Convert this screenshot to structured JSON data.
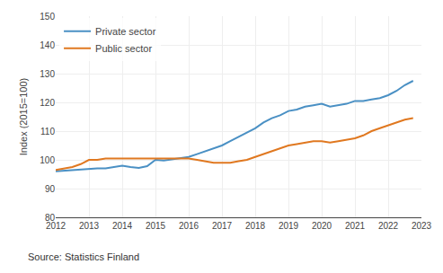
{
  "chart_data": {
    "type": "line",
    "ylabel": "Index (2015=100)",
    "source": "Source: Statistics Finland",
    "x": [
      2012.0,
      2012.25,
      2012.5,
      2012.75,
      2013.0,
      2013.25,
      2013.5,
      2013.75,
      2014.0,
      2014.25,
      2014.5,
      2014.75,
      2015.0,
      2015.25,
      2015.5,
      2015.75,
      2016.0,
      2016.25,
      2016.5,
      2016.75,
      2017.0,
      2017.25,
      2017.5,
      2017.75,
      2018.0,
      2018.25,
      2018.5,
      2018.75,
      2019.0,
      2019.25,
      2019.5,
      2019.75,
      2020.0,
      2020.25,
      2020.5,
      2020.75,
      2021.0,
      2021.25,
      2021.5,
      2021.75,
      2022.0,
      2022.25,
      2022.5,
      2022.75
    ],
    "series": [
      {
        "name": "Private sector",
        "color": "#4a90c4",
        "values": [
          96.0,
          96.2,
          96.5,
          96.8,
          97.0,
          97.0,
          97.0,
          97.5,
          98.0,
          97.5,
          97.2,
          97.8,
          100.0,
          99.8,
          100.2,
          100.5,
          101.0,
          102.0,
          103.0,
          104.0,
          105.0,
          106.5,
          108.0,
          109.5,
          111.0,
          113.0,
          114.5,
          115.5,
          117.0,
          117.5,
          118.5,
          119.0,
          119.5,
          118.5,
          119.0,
          119.5,
          120.5,
          120.5,
          121.0,
          121.5,
          122.5,
          124.0,
          126.0,
          127.5
        ]
      },
      {
        "name": "Public sector",
        "color": "#e07820",
        "values": [
          96.5,
          97.0,
          97.5,
          98.5,
          100.0,
          100.0,
          100.5,
          100.5,
          100.5,
          100.5,
          100.5,
          100.5,
          100.5,
          100.5,
          100.5,
          100.5,
          100.5,
          100.0,
          99.5,
          99.0,
          99.0,
          99.0,
          99.5,
          100.0,
          101.0,
          102.0,
          103.0,
          104.0,
          105.0,
          105.5,
          106.0,
          106.5,
          106.5,
          106.0,
          106.5,
          107.0,
          107.5,
          108.5,
          110.0,
          111.0,
          112.0,
          113.0,
          114.0,
          114.5
        ]
      }
    ],
    "xlim": [
      2012,
      2023
    ],
    "ylim": [
      80,
      150
    ],
    "xticks": [
      2012,
      2013,
      2014,
      2015,
      2016,
      2017,
      2018,
      2019,
      2020,
      2021,
      2022,
      2023
    ],
    "yticks": [
      80,
      90,
      100,
      110,
      120,
      130,
      140,
      150
    ],
    "grid": true,
    "legend": "upper left"
  }
}
